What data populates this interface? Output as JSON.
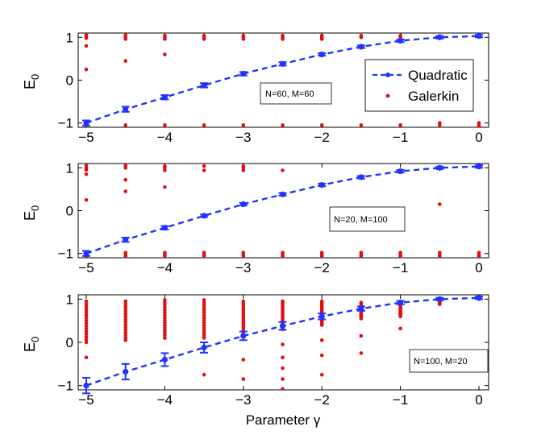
{
  "colors": {
    "quadratic": "#2233ff",
    "galerkin": "#e01010"
  },
  "xlabel": "Parameter γ",
  "ylabel": {
    "main": "E",
    "sub": "0"
  },
  "legend": {
    "quadratic": "Quadratic",
    "galerkin": "Galerkin"
  },
  "chart_data": [
    {
      "type": "scatter",
      "annotation": "N=60, M=60",
      "xlim": [
        -5,
        0
      ],
      "ylim": [
        -1.1,
        1.1
      ],
      "xticks": [
        -5,
        -4,
        -3,
        -2,
        -1,
        0
      ],
      "yticks": [
        -1,
        0,
        1
      ],
      "legend_position": "right",
      "quadratic": {
        "x": [
          -5,
          -4.5,
          -4,
          -3.5,
          -3,
          -2.5,
          -2,
          -1.5,
          -1,
          -0.5,
          0
        ],
        "y": [
          -1.0,
          -0.68,
          -0.4,
          -0.12,
          0.15,
          0.38,
          0.6,
          0.78,
          0.92,
          1.0,
          1.03
        ],
        "err": [
          0.06,
          0.06,
          0.05,
          0.05,
          0.04,
          0.04,
          0.03,
          0.03,
          0.03,
          0.03,
          0.03
        ]
      },
      "galerkin": [
        {
          "x": -5,
          "y": [
            1.05,
            1.02,
            0.98,
            0.8,
            0.25,
            -1.0,
            -1.05
          ]
        },
        {
          "x": -4.5,
          "y": [
            1.05,
            1.0,
            0.96,
            0.45,
            -0.7,
            -1.05
          ]
        },
        {
          "x": -4,
          "y": [
            1.04,
            1.0,
            0.96,
            0.6,
            -0.4,
            -1.05
          ]
        },
        {
          "x": -3.5,
          "y": [
            1.04,
            1.0,
            0.96,
            -0.12,
            -1.05
          ]
        },
        {
          "x": -3,
          "y": [
            1.04,
            1.0,
            0.96,
            0.15,
            -1.05
          ]
        },
        {
          "x": -2.5,
          "y": [
            1.04,
            1.0,
            0.96,
            0.38,
            -1.05
          ]
        },
        {
          "x": -2,
          "y": [
            1.04,
            1.0,
            0.96,
            0.6,
            -1.05
          ]
        },
        {
          "x": -1.5,
          "y": [
            1.04,
            1.0,
            0.78,
            -1.05
          ]
        },
        {
          "x": -1,
          "y": [
            1.04,
            1.0,
            0.92,
            -1.05
          ]
        },
        {
          "x": -0.5,
          "y": [
            1.03,
            0.98,
            -1.0,
            -1.05
          ]
        },
        {
          "x": 0,
          "y": [
            1.03,
            -1.0,
            -1.05,
            -1.08
          ]
        }
      ]
    },
    {
      "type": "scatter",
      "annotation": "N=20, M=100",
      "xlim": [
        -5,
        0
      ],
      "ylim": [
        -1.1,
        1.1
      ],
      "xticks": [
        -5,
        -4,
        -3,
        -2,
        -1,
        0
      ],
      "yticks": [
        -1,
        0,
        1
      ],
      "quadratic": {
        "x": [
          -5,
          -4.5,
          -4,
          -3.5,
          -3,
          -2.5,
          -2,
          -1.5,
          -1,
          -0.5,
          0
        ],
        "y": [
          -1.0,
          -0.68,
          -0.4,
          -0.12,
          0.15,
          0.38,
          0.6,
          0.78,
          0.92,
          1.0,
          1.03
        ],
        "err": [
          0.06,
          0.05,
          0.04,
          0.03,
          0.03,
          0.03,
          0.03,
          0.03,
          0.03,
          0.03,
          0.03
        ]
      },
      "galerkin": [
        {
          "x": -5,
          "y": [
            1.05,
            1.0,
            0.95,
            0.85,
            0.25,
            -0.98,
            -1.03,
            -1.06
          ]
        },
        {
          "x": -4.5,
          "y": [
            1.05,
            1.0,
            0.72,
            0.45,
            -0.68,
            -0.98,
            -1.03,
            -1.06
          ]
        },
        {
          "x": -4,
          "y": [
            1.04,
            1.0,
            0.94,
            0.55,
            -0.4,
            -0.98,
            -1.03,
            -1.06
          ]
        },
        {
          "x": -3.5,
          "y": [
            1.04,
            0.94,
            -0.12,
            -0.98,
            -1.03,
            -1.06
          ]
        },
        {
          "x": -3,
          "y": [
            1.04,
            1.0,
            0.94,
            0.15,
            -0.98,
            -1.03,
            -1.06
          ]
        },
        {
          "x": -2.5,
          "y": [
            0.94,
            0.38,
            -0.98,
            -1.03,
            -1.06
          ]
        },
        {
          "x": -2,
          "y": [
            0.6,
            -0.98,
            -1.03,
            -1.06
          ]
        },
        {
          "x": -1.5,
          "y": [
            0.78,
            -0.98,
            -1.03,
            -1.06
          ]
        },
        {
          "x": -1,
          "y": [
            0.92,
            -0.98,
            -1.03,
            -1.06
          ]
        },
        {
          "x": -0.5,
          "y": [
            1.0,
            0.15,
            -0.98,
            -1.03,
            -1.06
          ]
        },
        {
          "x": 0,
          "y": [
            1.03,
            -0.98,
            -1.03,
            -1.06
          ]
        }
      ]
    },
    {
      "type": "scatter",
      "annotation": "N=100, M=20",
      "xlim": [
        -5,
        0
      ],
      "ylim": [
        -1.1,
        1.1
      ],
      "xticks": [
        -5,
        -4,
        -3,
        -2,
        -1,
        0
      ],
      "yticks": [
        -1,
        0,
        1
      ],
      "quadratic": {
        "x": [
          -5,
          -4.5,
          -4,
          -3.5,
          -3,
          -2.5,
          -2,
          -1.5,
          -1,
          -0.5,
          0
        ],
        "y": [
          -1.0,
          -0.68,
          -0.4,
          -0.12,
          0.15,
          0.38,
          0.6,
          0.78,
          0.92,
          1.0,
          1.03
        ],
        "err": [
          0.18,
          0.18,
          0.15,
          0.12,
          0.1,
          0.09,
          0.07,
          0.05,
          0.04,
          0.03,
          0.03
        ]
      },
      "galerkin_columns": [
        {
          "x": -5,
          "top": 0.95,
          "bottom": 0.0,
          "extra": [
            -0.35,
            -1.0
          ]
        },
        {
          "x": -4.5,
          "top": 0.95,
          "bottom": 0.05,
          "extra": [
            -0.68
          ]
        },
        {
          "x": -4,
          "top": 0.98,
          "bottom": 0.1,
          "extra": [
            -0.4
          ]
        },
        {
          "x": -3.5,
          "top": 0.98,
          "bottom": 0.1,
          "extra": [
            -0.12,
            -0.75
          ]
        },
        {
          "x": -3,
          "top": 0.95,
          "bottom": 0.2,
          "extra": [
            0.15,
            -0.4,
            -0.85
          ]
        },
        {
          "x": -2.5,
          "top": 0.95,
          "bottom": 0.3,
          "extra": [
            0.38,
            -0.05,
            -0.35,
            -0.6,
            -0.85,
            -1.08
          ]
        },
        {
          "x": -2,
          "top": 0.95,
          "bottom": 0.4,
          "extra": [
            0.05,
            -0.3,
            -0.75
          ]
        },
        {
          "x": -1.5,
          "top": 0.92,
          "bottom": 0.55,
          "extra": [
            0.78,
            0.15,
            -0.25
          ]
        },
        {
          "x": -1,
          "top": 0.9,
          "bottom": 0.6,
          "extra": [
            0.92,
            0.32
          ]
        },
        {
          "x": -0.5,
          "top": 1.0,
          "bottom": 0.88,
          "extra": [
            1.0
          ]
        },
        {
          "x": 0,
          "top": 1.05,
          "bottom": 1.0,
          "extra": [
            1.03
          ]
        }
      ]
    }
  ]
}
